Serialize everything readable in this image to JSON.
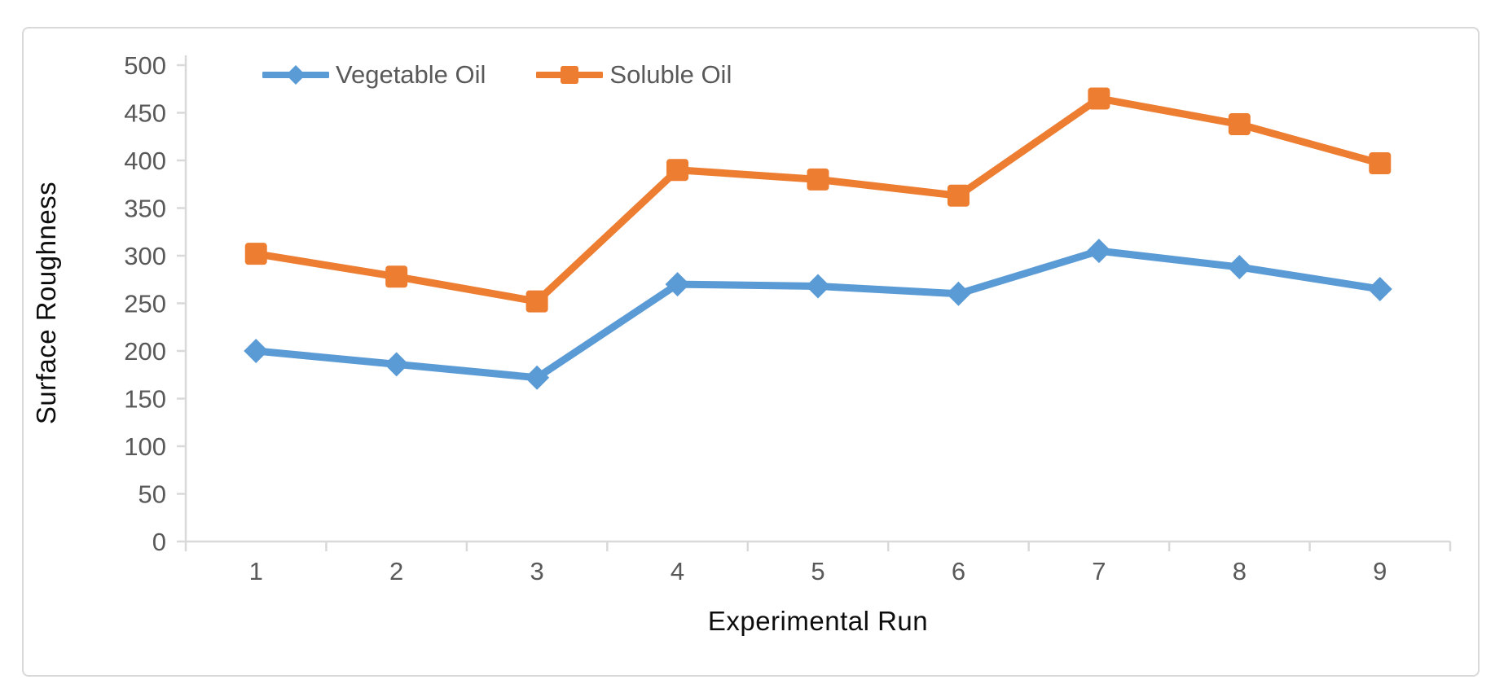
{
  "chart_data": {
    "type": "line",
    "xlabel": "Experimental Run",
    "ylabel": "Surface Roughness",
    "categories": [
      "1",
      "2",
      "3",
      "4",
      "5",
      "6",
      "7",
      "8",
      "9"
    ],
    "series": [
      {
        "name": "Vegetable Oil",
        "color": "#5B9BD5",
        "marker": "diamond",
        "values": [
          200,
          186,
          172,
          270,
          268,
          260,
          305,
          288,
          265
        ]
      },
      {
        "name": "Soluble Oil",
        "color": "#ED7D31",
        "marker": "square",
        "values": [
          302,
          278,
          252,
          390,
          380,
          363,
          465,
          438,
          397
        ]
      }
    ],
    "ylim": [
      0,
      500
    ],
    "yticks": [
      0,
      50,
      100,
      150,
      200,
      250,
      300,
      350,
      400,
      450,
      500
    ],
    "grid": false,
    "legend_position": "top-left-inside"
  },
  "colors": {
    "background": "#FFFFFF",
    "frame_border": "#D9D9D9",
    "axis_line": "#D9D9D9",
    "tick_label": "#595959",
    "axis_title": "#0D0D0D",
    "series_vegetable_oil": "#5B9BD5",
    "series_soluble_oil": "#ED7D31"
  }
}
